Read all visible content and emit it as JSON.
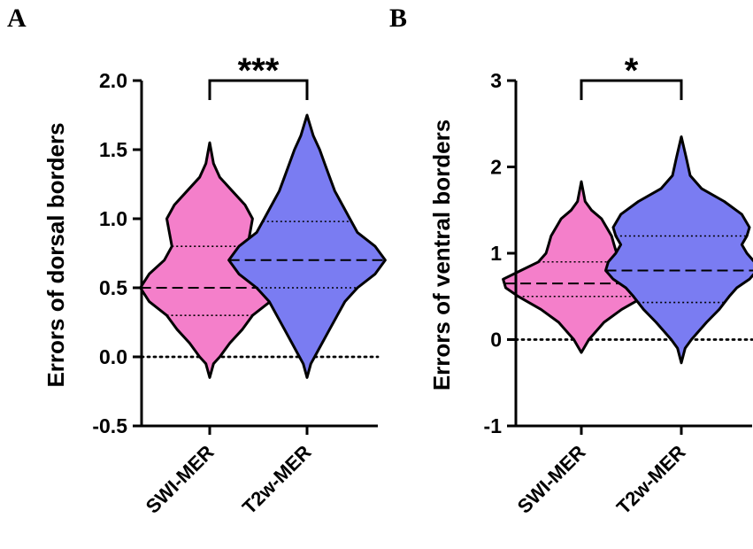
{
  "colors": {
    "swi": "#f47fca",
    "t2w": "#7a7cf2",
    "stroke": "#000000"
  },
  "chart_data": [
    {
      "panel": "A",
      "type": "violin",
      "ylabel": "Errors of dorsal borders",
      "ylim": [
        -0.5,
        2.0
      ],
      "yticks": [
        -0.5,
        0.0,
        0.5,
        1.0,
        1.5,
        2.0
      ],
      "ytick_labels": [
        "-0.5",
        "0.0",
        "0.5",
        "1.0",
        "1.5",
        "2.0"
      ],
      "categories": [
        "SWI-MER",
        "T2w-MER"
      ],
      "significance": "***",
      "bracket_y": 2.0,
      "reference_line": 0.0,
      "series": [
        {
          "name": "SWI-MER",
          "color": "#f47fca",
          "median": 0.5,
          "q1": 0.3,
          "q3": 0.8,
          "profile": [
            [
              -0.15,
              0.0
            ],
            [
              -0.05,
              0.015
            ],
            [
              0.0,
              0.04
            ],
            [
              0.1,
              0.08
            ],
            [
              0.2,
              0.13
            ],
            [
              0.3,
              0.17
            ],
            [
              0.4,
              0.24
            ],
            [
              0.5,
              0.275
            ],
            [
              0.6,
              0.24
            ],
            [
              0.7,
              0.18
            ],
            [
              0.8,
              0.15
            ],
            [
              0.9,
              0.16
            ],
            [
              1.0,
              0.17
            ],
            [
              1.1,
              0.14
            ],
            [
              1.2,
              0.09
            ],
            [
              1.3,
              0.04
            ],
            [
              1.4,
              0.015
            ],
            [
              1.55,
              0.0
            ]
          ]
        },
        {
          "name": "T2w-MER",
          "color": "#7a7cf2",
          "median": 0.7,
          "q1": 0.5,
          "q3": 0.98,
          "profile": [
            [
              -0.15,
              0.0
            ],
            [
              -0.05,
              0.015
            ],
            [
              0.0,
              0.03
            ],
            [
              0.1,
              0.06
            ],
            [
              0.2,
              0.09
            ],
            [
              0.3,
              0.12
            ],
            [
              0.4,
              0.15
            ],
            [
              0.5,
              0.2
            ],
            [
              0.6,
              0.27
            ],
            [
              0.7,
              0.31
            ],
            [
              0.8,
              0.27
            ],
            [
              0.9,
              0.2
            ],
            [
              1.0,
              0.17
            ],
            [
              1.1,
              0.14
            ],
            [
              1.2,
              0.11
            ],
            [
              1.3,
              0.09
            ],
            [
              1.4,
              0.07
            ],
            [
              1.5,
              0.05
            ],
            [
              1.6,
              0.025
            ],
            [
              1.75,
              0.0
            ]
          ]
        }
      ]
    },
    {
      "panel": "B",
      "type": "violin",
      "ylabel": "Errors of ventral borders",
      "ylim": [
        -1,
        3
      ],
      "yticks": [
        -1,
        0,
        1,
        2,
        3
      ],
      "ytick_labels": [
        "-1",
        "0",
        "1",
        "2",
        "3"
      ],
      "categories": [
        "SWI-MER",
        "T2w-MER"
      ],
      "significance": "*",
      "bracket_y": 3.0,
      "reference_line": 0.0,
      "series": [
        {
          "name": "SWI-MER",
          "color": "#f47fca",
          "median": 0.65,
          "q1": 0.5,
          "q3": 0.9,
          "profile": [
            [
              -0.15,
              0.0
            ],
            [
              0.0,
              0.03
            ],
            [
              0.2,
              0.09
            ],
            [
              0.35,
              0.16
            ],
            [
              0.5,
              0.25
            ],
            [
              0.6,
              0.3
            ],
            [
              0.7,
              0.31
            ],
            [
              0.8,
              0.24
            ],
            [
              0.9,
              0.17
            ],
            [
              1.0,
              0.14
            ],
            [
              1.1,
              0.13
            ],
            [
              1.2,
              0.12
            ],
            [
              1.3,
              0.1
            ],
            [
              1.4,
              0.08
            ],
            [
              1.5,
              0.04
            ],
            [
              1.6,
              0.015
            ],
            [
              1.83,
              0.0
            ]
          ]
        },
        {
          "name": "T2w-MER",
          "color": "#7a7cf2",
          "median": 0.8,
          "q1": 0.43,
          "q3": 1.2,
          "profile": [
            [
              -0.27,
              0.0
            ],
            [
              -0.1,
              0.015
            ],
            [
              0.0,
              0.04
            ],
            [
              0.2,
              0.1
            ],
            [
              0.35,
              0.15
            ],
            [
              0.5,
              0.19
            ],
            [
              0.6,
              0.22
            ],
            [
              0.7,
              0.27
            ],
            [
              0.8,
              0.3
            ],
            [
              0.9,
              0.29
            ],
            [
              1.0,
              0.26
            ],
            [
              1.1,
              0.24
            ],
            [
              1.2,
              0.26
            ],
            [
              1.3,
              0.27
            ],
            [
              1.45,
              0.24
            ],
            [
              1.6,
              0.17
            ],
            [
              1.75,
              0.08
            ],
            [
              1.9,
              0.035
            ],
            [
              2.1,
              0.02
            ],
            [
              2.35,
              0.0
            ]
          ]
        }
      ]
    }
  ]
}
